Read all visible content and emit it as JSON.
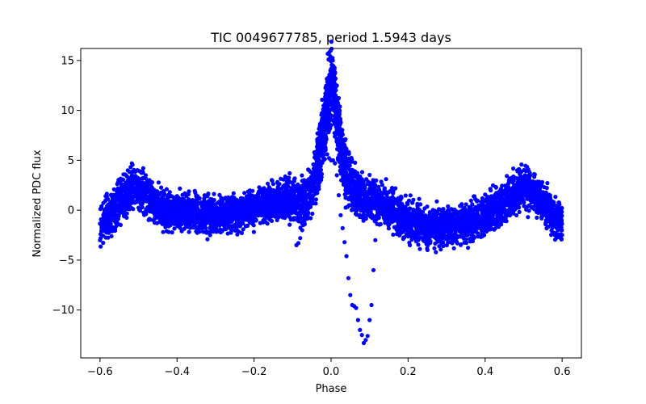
{
  "chart_data": {
    "type": "scatter",
    "title": "TIC 0049677785, period 1.5943 days",
    "xlabel": "Phase",
    "ylabel": "Normalized PDC flux",
    "xlim": [
      -0.65,
      0.65
    ],
    "ylim": [
      -14.8,
      16.2
    ],
    "xticks": [
      -0.6,
      -0.4,
      -0.2,
      0.0,
      0.2,
      0.4,
      0.6
    ],
    "xtick_labels": [
      "−0.6",
      "−0.4",
      "−0.2",
      "0.0",
      "0.2",
      "0.4",
      "0.6"
    ],
    "yticks": [
      -10,
      -5,
      0,
      5,
      10,
      15
    ],
    "ytick_labels": [
      "−10",
      "−5",
      "0",
      "5",
      "10",
      "15"
    ],
    "grid": false,
    "marker_color": "#0000ff",
    "series": [
      {
        "style": "dense band",
        "x": [
          -0.6,
          -0.58,
          -0.56,
          -0.54,
          -0.52,
          -0.5,
          -0.48,
          -0.46,
          -0.44,
          -0.42,
          -0.4,
          -0.38,
          -0.36,
          -0.34,
          -0.32,
          -0.3,
          -0.28,
          -0.26,
          -0.24,
          -0.22,
          -0.2,
          -0.18,
          -0.16,
          -0.14,
          -0.12,
          -0.1,
          -0.08,
          -0.06,
          -0.04,
          -0.03,
          -0.02,
          -0.01,
          0.0,
          0.01,
          0.02,
          0.03,
          0.04,
          0.06,
          0.08,
          0.1,
          0.12,
          0.14,
          0.16,
          0.18,
          0.2,
          0.22,
          0.24,
          0.26,
          0.28,
          0.3,
          0.32,
          0.34,
          0.36,
          0.38,
          0.4,
          0.42,
          0.44,
          0.46,
          0.48,
          0.5,
          0.52,
          0.54,
          0.56,
          0.58,
          0.6
        ],
        "y_center": [
          -1.2,
          -0.8,
          0.3,
          1.2,
          2.0,
          2.2,
          1.6,
          0.6,
          0.1,
          0.0,
          -0.1,
          -0.2,
          -0.3,
          -0.4,
          -0.5,
          -0.5,
          -0.4,
          -0.3,
          -0.2,
          0.0,
          0.2,
          0.5,
          0.8,
          1.0,
          1.1,
          1.0,
          0.6,
          1.5,
          3.5,
          5.5,
          8.0,
          11.0,
          12.5,
          11.0,
          8.0,
          5.5,
          3.5,
          2.0,
          1.3,
          1.0,
          0.8,
          0.5,
          0.0,
          -0.6,
          -1.0,
          -1.3,
          -1.5,
          -1.6,
          -1.7,
          -1.6,
          -1.5,
          -1.4,
          -1.3,
          -1.0,
          -0.6,
          0.0,
          0.6,
          1.2,
          1.8,
          2.2,
          2.0,
          1.2,
          0.3,
          -0.8,
          -1.2
        ],
        "y_spread": [
          2.6,
          2.6,
          2.6,
          2.6,
          2.8,
          2.8,
          2.8,
          2.6,
          2.4,
          2.4,
          2.4,
          2.4,
          2.4,
          2.4,
          2.4,
          2.4,
          2.4,
          2.4,
          2.4,
          2.4,
          2.4,
          2.4,
          2.4,
          2.4,
          2.6,
          2.8,
          3.0,
          3.2,
          3.6,
          4.0,
          4.6,
          5.0,
          5.0,
          5.0,
          4.6,
          4.0,
          3.6,
          3.2,
          3.0,
          2.8,
          2.6,
          2.6,
          2.6,
          2.6,
          2.6,
          2.6,
          2.6,
          2.6,
          2.6,
          2.6,
          2.6,
          2.6,
          2.6,
          2.6,
          2.6,
          2.6,
          2.6,
          2.6,
          2.8,
          2.8,
          2.8,
          2.6,
          2.6,
          2.6,
          2.6
        ]
      },
      {
        "style": "sparse trail",
        "x": [
          -0.09,
          -0.085,
          -0.08,
          -0.075,
          -0.07,
          -0.065,
          -0.06,
          -0.05,
          -0.04,
          -0.03,
          -0.02,
          -0.01,
          -0.005,
          0.0,
          0.005,
          0.01,
          0.015,
          0.02,
          0.025,
          0.03,
          0.035,
          0.04,
          0.045,
          0.05,
          0.055,
          0.06,
          0.065,
          0.07,
          0.075,
          0.08,
          0.085,
          0.09,
          0.095,
          0.1,
          0.105,
          0.11,
          0.115,
          0.12
        ],
        "y": [
          -3.5,
          -3.3,
          -2.8,
          -2.0,
          -1.0,
          0.0,
          1.5,
          3.0,
          4.0,
          4.8,
          5.5,
          5.6,
          5.2,
          5.0,
          5.0,
          4.7,
          3.5,
          1.5,
          -0.5,
          -1.8,
          -3.2,
          -4.6,
          -6.8,
          -8.5,
          -9.5,
          -9.6,
          -9.8,
          -11.0,
          -12.0,
          -12.5,
          -13.3,
          -13.0,
          -12.6,
          -11.0,
          -9.5,
          -6.0,
          -3.0,
          0.0
        ]
      }
    ]
  }
}
